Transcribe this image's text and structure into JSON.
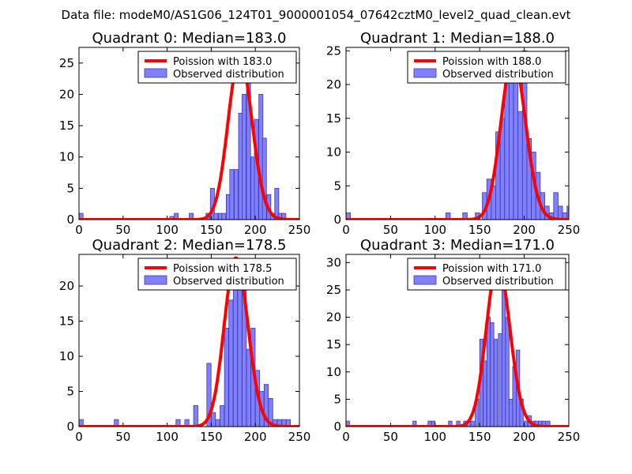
{
  "figure": {
    "suptitle": "Data file: modeM0/AS1G06_124T01_9000001054_07642cztM0_level2_quad_clean.evt"
  },
  "colors": {
    "bar_fill": "#8080ff",
    "bar_edge": "#3a3aa8",
    "fit_line": "#ff0000",
    "axes": "#000000"
  },
  "chart_data": [
    {
      "type": "bar",
      "title": "Quadrant 0: Median=183.0",
      "xlim": [
        0,
        250
      ],
      "ylim": [
        0,
        27.5
      ],
      "xticks": [
        0,
        50,
        100,
        150,
        200,
        250
      ],
      "yticks": [
        0,
        5,
        10,
        15,
        20,
        25
      ],
      "bin_width": 4.6,
      "series": [
        {
          "name": "Observed distribution",
          "type": "histogram",
          "bins": [
            [
              0,
              1
            ],
            [
              103,
              0.5
            ],
            [
              108,
              1
            ],
            [
              125,
              1
            ],
            [
              144,
              1
            ],
            [
              149,
              5
            ],
            [
              153,
              1
            ],
            [
              158,
              1
            ],
            [
              162,
              1
            ],
            [
              167,
              4
            ],
            [
              171,
              8
            ],
            [
              176,
              8
            ],
            [
              181,
              17
            ],
            [
              185,
              20
            ],
            [
              190,
              25
            ],
            [
              195,
              10
            ],
            [
              199,
              16
            ],
            [
              204,
              20
            ],
            [
              208,
              13
            ],
            [
              213,
              4
            ],
            [
              217,
              1
            ],
            [
              222,
              5
            ],
            [
              226,
              1
            ],
            [
              230,
              1
            ]
          ]
        },
        {
          "name": "Poission with 183.0",
          "type": "poisson",
          "mean": 183.0,
          "peak": 26.0
        }
      ],
      "legend": {
        "location": "top-right",
        "fit_label": "Poission with 183.0",
        "obs_label": "Observed distribution"
      }
    },
    {
      "type": "bar",
      "title": "Quadrant 1: Median=188.0",
      "xlim": [
        0,
        250
      ],
      "ylim": [
        0,
        25.5
      ],
      "xticks": [
        0,
        50,
        100,
        150,
        200,
        250
      ],
      "yticks": [
        0,
        5,
        10,
        15,
        20,
        25
      ],
      "bin_width": 5.0,
      "series": [
        {
          "name": "Observed distribution",
          "type": "histogram",
          "bins": [
            [
              0,
              1
            ],
            [
              112,
              1
            ],
            [
              131,
              1
            ],
            [
              145,
              1
            ],
            [
              153,
              4
            ],
            [
              158,
              6
            ],
            [
              163,
              5
            ],
            [
              168,
              13
            ],
            [
              173,
              15
            ],
            [
              178,
              24
            ],
            [
              183,
              21
            ],
            [
              188,
              22
            ],
            [
              193,
              16
            ],
            [
              198,
              25
            ],
            [
              203,
              12
            ],
            [
              208,
              10
            ],
            [
              213,
              7
            ],
            [
              218,
              4
            ],
            [
              223,
              2
            ],
            [
              228,
              1
            ],
            [
              233,
              4
            ],
            [
              238,
              2
            ],
            [
              243,
              1
            ],
            [
              248,
              2
            ]
          ]
        },
        {
          "name": "Poission with 188.0",
          "type": "poisson",
          "mean": 188.0,
          "peak": 24.0
        }
      ],
      "legend": {
        "location": "top-right",
        "fit_label": "Poission with 188.0",
        "obs_label": "Observed distribution"
      }
    },
    {
      "type": "bar",
      "title": "Quadrant 2: Median=178.5",
      "xlim": [
        0,
        250
      ],
      "ylim": [
        0,
        24.5
      ],
      "xticks": [
        0,
        50,
        100,
        150,
        200,
        250
      ],
      "yticks": [
        0,
        5,
        10,
        15,
        20
      ],
      "bin_width": 4.8,
      "series": [
        {
          "name": "Observed distribution",
          "type": "histogram",
          "bins": [
            [
              0,
              1
            ],
            [
              40,
              1
            ],
            [
              110,
              1
            ],
            [
              120,
              1
            ],
            [
              130,
              3
            ],
            [
              145,
              9
            ],
            [
              150,
              2
            ],
            [
              155,
              1
            ],
            [
              160,
              3
            ],
            [
              165,
              14
            ],
            [
              170,
              18
            ],
            [
              175,
              23
            ],
            [
              180,
              20
            ],
            [
              185,
              23
            ],
            [
              190,
              11
            ],
            [
              195,
              14
            ],
            [
              200,
              8
            ],
            [
              205,
              5
            ],
            [
              210,
              6
            ],
            [
              215,
              4
            ],
            [
              220,
              1
            ],
            [
              225,
              1
            ],
            [
              230,
              1
            ],
            [
              235,
              1
            ]
          ]
        },
        {
          "name": "Poission with 178.5",
          "type": "poisson",
          "mean": 178.5,
          "peak": 24.0
        }
      ],
      "legend": {
        "location": "top-right",
        "fit_label": "Poission with 178.5",
        "obs_label": "Observed distribution"
      }
    },
    {
      "type": "bar",
      "title": "Quadrant 3: Median=171.0",
      "xlim": [
        0,
        250
      ],
      "ylim": [
        0,
        31.5
      ],
      "xticks": [
        0,
        50,
        100,
        150,
        200,
        250
      ],
      "yticks": [
        0,
        5,
        10,
        15,
        20,
        25,
        30
      ],
      "bin_width": 3.9,
      "series": [
        {
          "name": "Observed distribution",
          "type": "histogram",
          "bins": [
            [
              0,
              1
            ],
            [
              75,
              1
            ],
            [
              92,
              1
            ],
            [
              96,
              1
            ],
            [
              115,
              1
            ],
            [
              124,
              1
            ],
            [
              132,
              1
            ],
            [
              136,
              1
            ],
            [
              140,
              1
            ],
            [
              145,
              5
            ],
            [
              150,
              16
            ],
            [
              154,
              12
            ],
            [
              158,
              20
            ],
            [
              162,
              19
            ],
            [
              166,
              16
            ],
            [
              171,
              17
            ],
            [
              175,
              30
            ],
            [
              179,
              20
            ],
            [
              183,
              5
            ],
            [
              187,
              11
            ],
            [
              191,
              14
            ],
            [
              195,
              5
            ],
            [
              200,
              1
            ],
            [
              204,
              2
            ],
            [
              208,
              1
            ],
            [
              212,
              1
            ],
            [
              216,
              1
            ],
            [
              220,
              1
            ],
            [
              225,
              1
            ]
          ]
        },
        {
          "name": "Poission with 171.0",
          "type": "poisson",
          "mean": 171.0,
          "peak": 30.0
        }
      ],
      "legend": {
        "location": "top-right",
        "fit_label": "Poission with 171.0",
        "obs_label": "Observed distribution"
      }
    }
  ]
}
